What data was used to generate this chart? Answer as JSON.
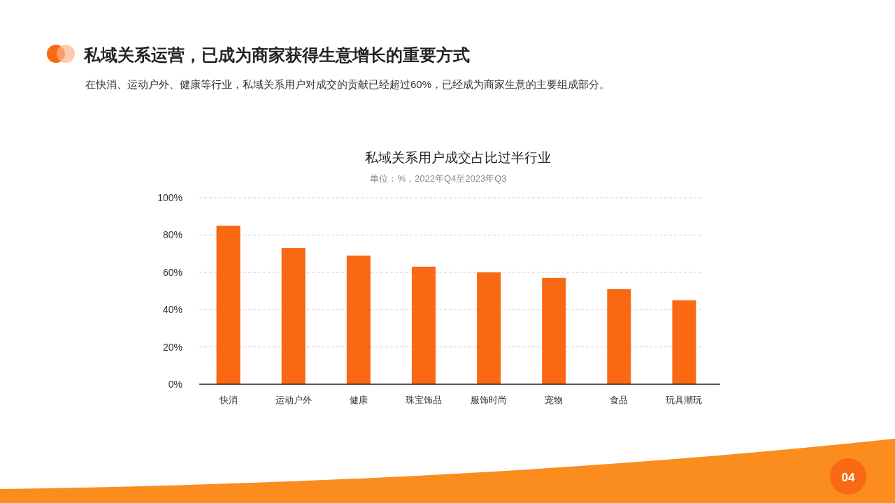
{
  "chart_data": {
    "type": "bar",
    "title": "私域关系用户成交占比过半行业",
    "subtitle": "单位：%，2022年Q4至2023年Q3",
    "categories": [
      "快消",
      "运动户外",
      "健康",
      "珠宝饰品",
      "服饰时尚",
      "宠物",
      "食品",
      "玩具潮玩"
    ],
    "values": [
      85,
      73,
      69,
      63,
      60,
      57,
      51,
      45
    ],
    "color": "#f96812",
    "ylim": [
      0,
      100
    ],
    "yticks": [
      {
        "value": 0,
        "label": "0%"
      },
      {
        "value": 20,
        "label": "20%"
      },
      {
        "value": 40,
        "label": "40%"
      },
      {
        "value": 60,
        "label": "60%"
      },
      {
        "value": 80,
        "label": "80%"
      },
      {
        "value": 100,
        "label": "100%"
      }
    ],
    "grid": "y",
    "legend": false,
    "annotations": [
      "私域关系运营，已成为商家获得生意增长的重要方式",
      "在快消、运动户外、健康等行业，私域关系用户对成交的贡献已经超过60%，已经成为商家生意的主要组成部分。",
      "04"
    ]
  }
}
